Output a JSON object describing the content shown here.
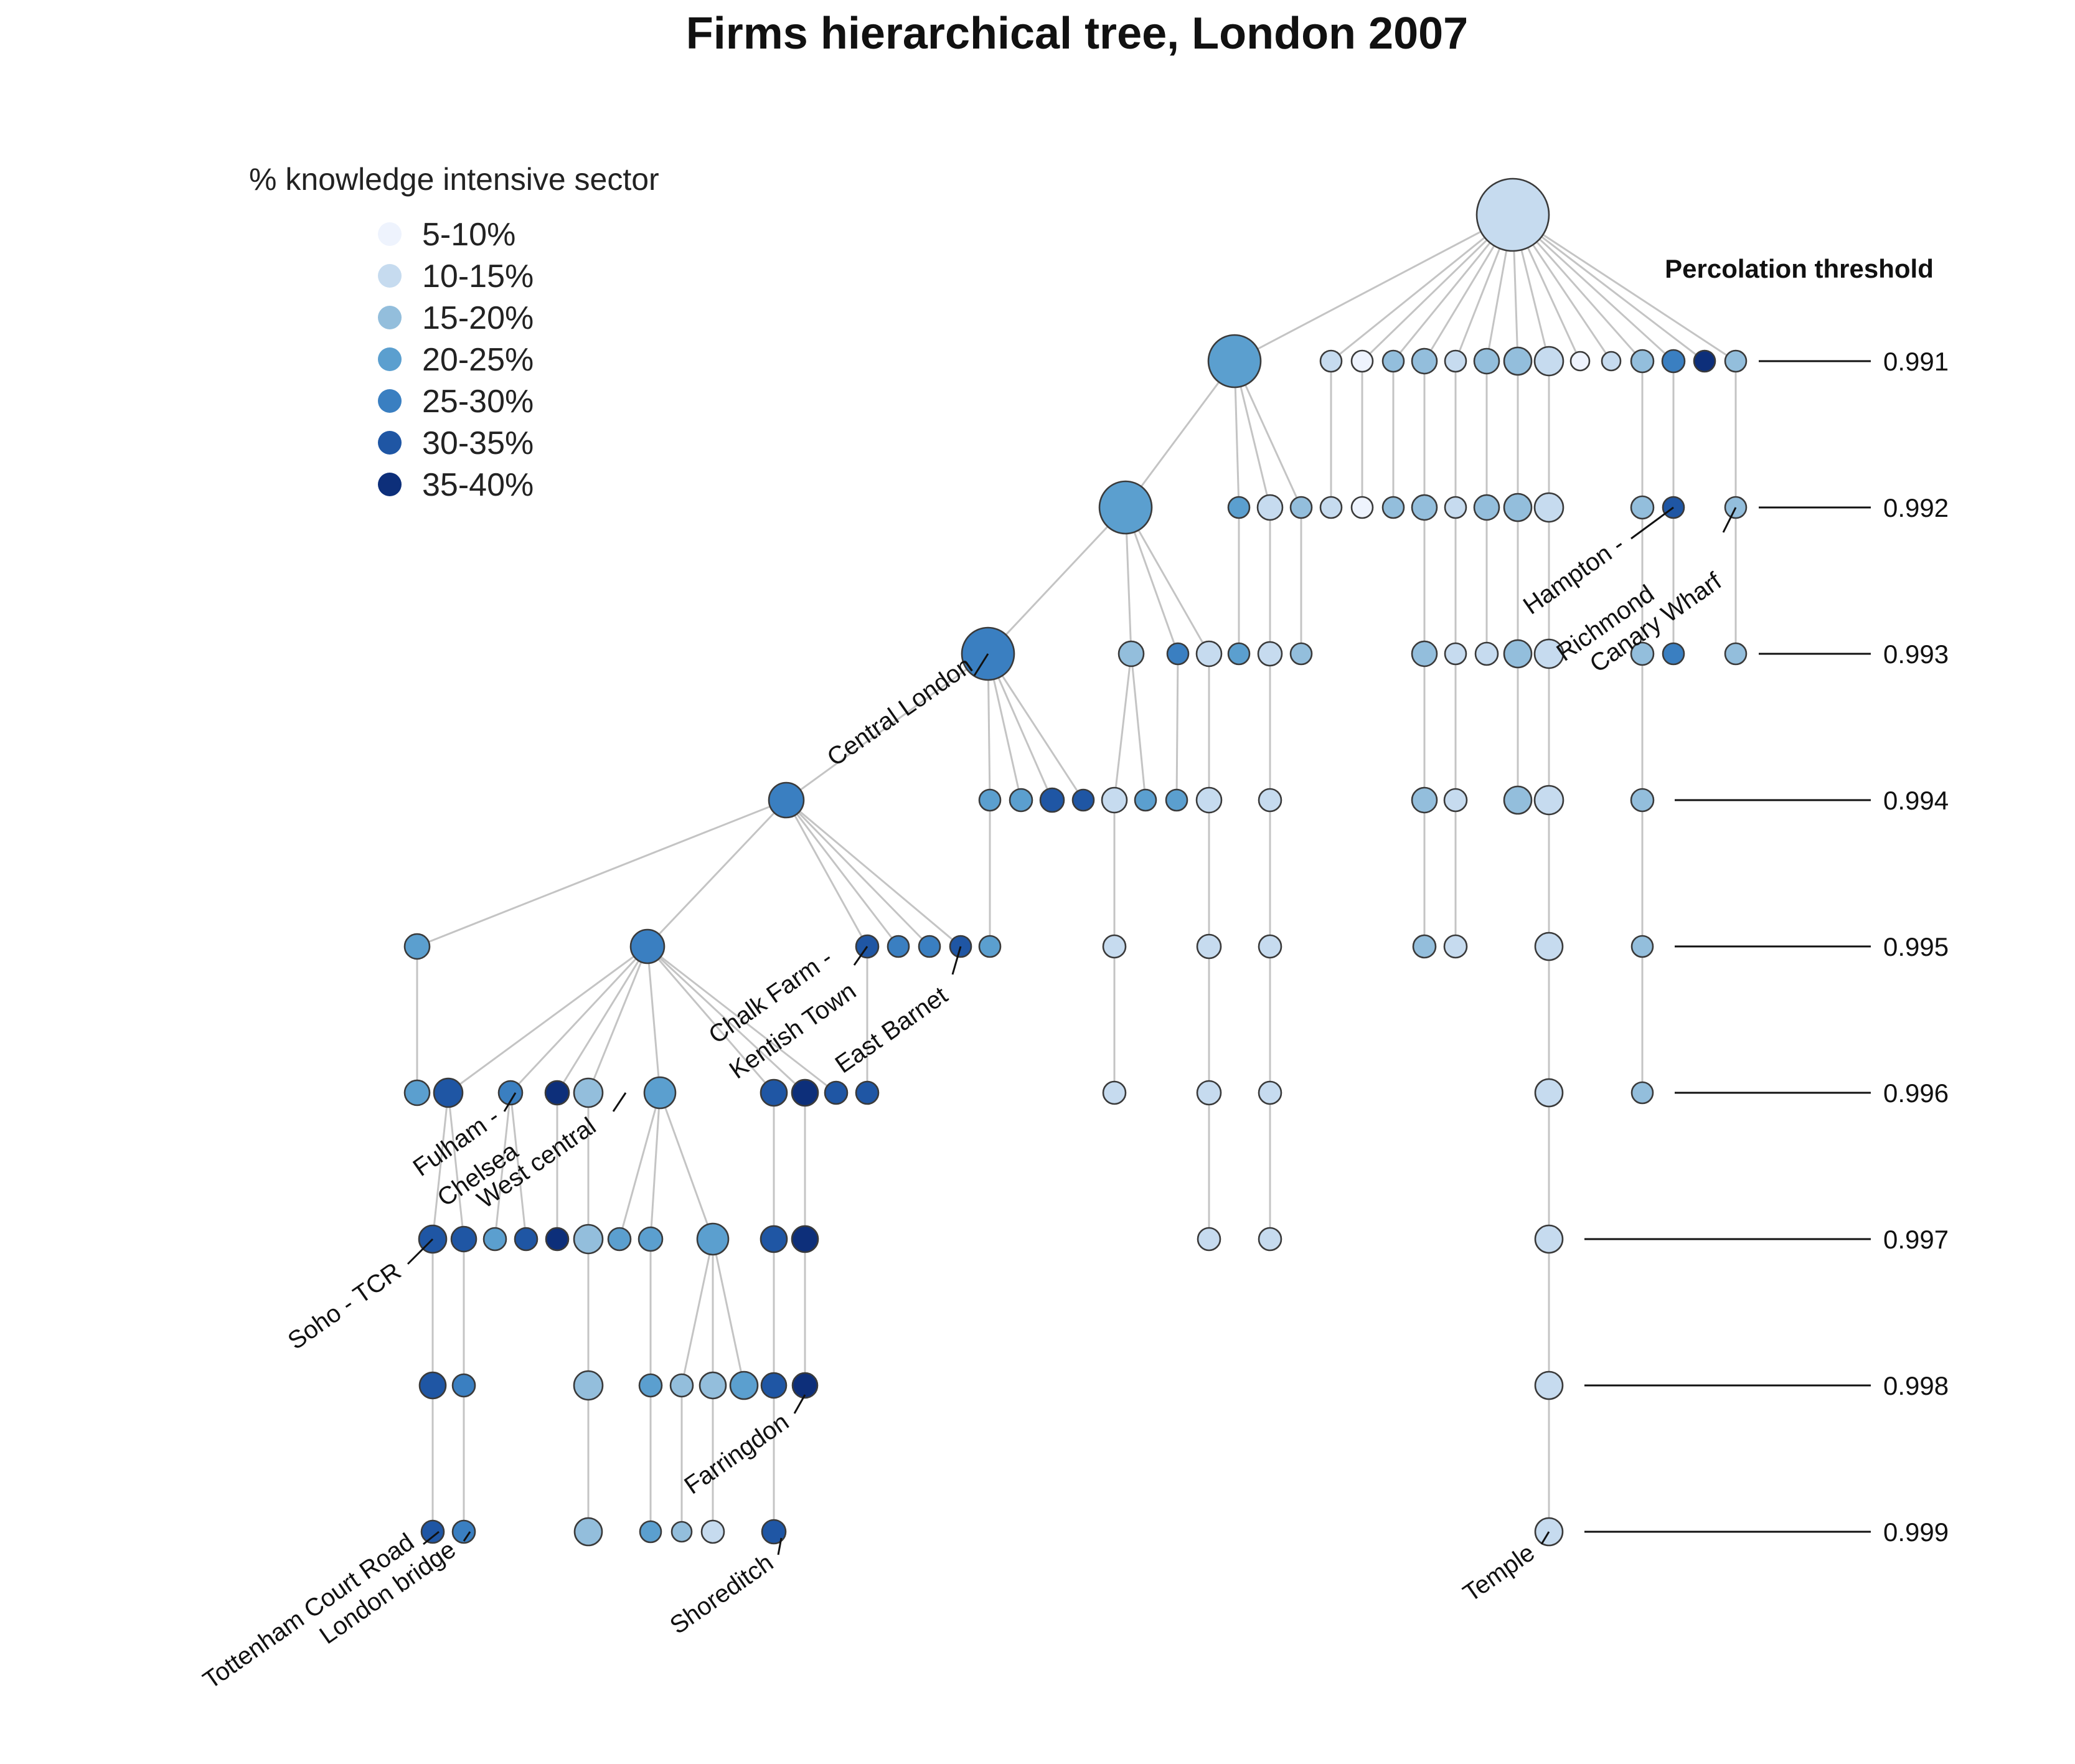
{
  "title": "Firms hierarchical tree, London 2007",
  "legend": {
    "title": "% knowledge intensive sector",
    "items": [
      {
        "label": "5-10%",
        "color": "#eef3fd"
      },
      {
        "label": "10-15%",
        "color": "#c6dbef"
      },
      {
        "label": "15-20%",
        "color": "#93bedc"
      },
      {
        "label": "20-25%",
        "color": "#5b9fcf"
      },
      {
        "label": "25-30%",
        "color": "#3a7fc1"
      },
      {
        "label": "30-35%",
        "color": "#1f56a4"
      },
      {
        "label": "35-40%",
        "color": "#0d2f7a"
      }
    ]
  },
  "thresholds": {
    "title": "Percolation threshold",
    "levels": [
      "0.991",
      "0.992",
      "0.993",
      "0.994",
      "0.995",
      "0.996",
      "0.997",
      "0.998",
      "0.999"
    ]
  },
  "place_labels": [
    {
      "text": "Hampton -"
    },
    {
      "text": "Richmond"
    },
    {
      "text": "Canary Wharf"
    },
    {
      "text": "Central London"
    },
    {
      "text": "Chalk Farm -"
    },
    {
      "text": "Kentish Town"
    },
    {
      "text": "East Barnet"
    },
    {
      "text": "Fulham -"
    },
    {
      "text": "Chelsea"
    },
    {
      "text": "West central"
    },
    {
      "text": "Soho - TCR"
    },
    {
      "text": "Farringdon"
    },
    {
      "text": "Tottenham Court Road"
    },
    {
      "text": "London bridge"
    },
    {
      "text": "Shoreditch"
    },
    {
      "text": "Temple"
    }
  ]
}
